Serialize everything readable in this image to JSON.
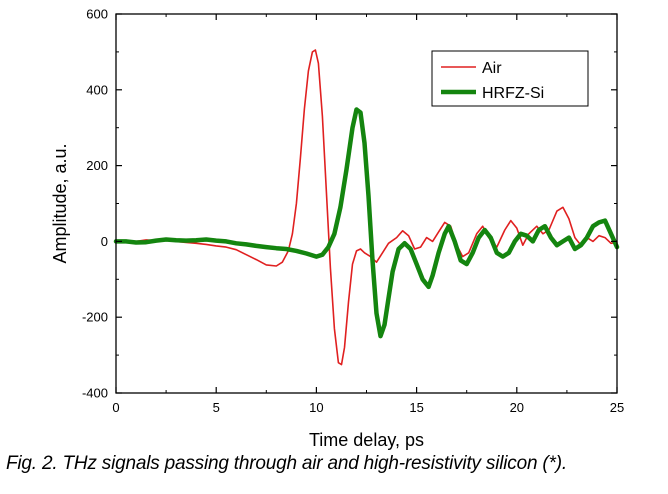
{
  "caption": "Fig.  2. THz signals passing through air and high-resistivity silicon (*).",
  "chart_data": {
    "type": "line",
    "title": "",
    "xlabel": "Time delay, ps",
    "ylabel": "Amplitude, a.u.",
    "xlim": [
      0,
      25
    ],
    "ylim": [
      -400,
      600
    ],
    "x_ticks": [
      0,
      5,
      10,
      15,
      20,
      25
    ],
    "y_ticks": [
      -400,
      -200,
      0,
      200,
      400,
      600
    ],
    "legend_position": "top-right",
    "grid": false,
    "series": [
      {
        "name": "Air",
        "color": "#e02020",
        "points": [
          [
            0,
            0
          ],
          [
            0.5,
            3
          ],
          [
            1,
            0
          ],
          [
            1.5,
            4
          ],
          [
            2,
            2
          ],
          [
            2.5,
            5
          ],
          [
            3,
            0
          ],
          [
            3.5,
            -3
          ],
          [
            4,
            -5
          ],
          [
            4.5,
            -8
          ],
          [
            5,
            -12
          ],
          [
            5.5,
            -15
          ],
          [
            6,
            -22
          ],
          [
            6.5,
            -35
          ],
          [
            7,
            -48
          ],
          [
            7.5,
            -62
          ],
          [
            8,
            -65
          ],
          [
            8.3,
            -55
          ],
          [
            8.6,
            -25
          ],
          [
            8.8,
            20
          ],
          [
            9,
            100
          ],
          [
            9.2,
            220
          ],
          [
            9.4,
            350
          ],
          [
            9.6,
            450
          ],
          [
            9.8,
            500
          ],
          [
            9.95,
            505
          ],
          [
            10.1,
            470
          ],
          [
            10.3,
            330
          ],
          [
            10.5,
            130
          ],
          [
            10.7,
            -70
          ],
          [
            10.9,
            -230
          ],
          [
            11.1,
            -320
          ],
          [
            11.25,
            -325
          ],
          [
            11.4,
            -280
          ],
          [
            11.6,
            -160
          ],
          [
            11.8,
            -60
          ],
          [
            12.0,
            -25
          ],
          [
            12.2,
            -20
          ],
          [
            12.4,
            -30
          ],
          [
            12.7,
            -40
          ],
          [
            13.0,
            -55
          ],
          [
            13.3,
            -30
          ],
          [
            13.6,
            -5
          ],
          [
            14.0,
            10
          ],
          [
            14.3,
            28
          ],
          [
            14.6,
            15
          ],
          [
            14.9,
            -20
          ],
          [
            15.2,
            -15
          ],
          [
            15.5,
            10
          ],
          [
            15.8,
            0
          ],
          [
            16.1,
            25
          ],
          [
            16.4,
            50
          ],
          [
            16.7,
            40
          ],
          [
            17.0,
            -10
          ],
          [
            17.3,
            -40
          ],
          [
            17.6,
            -30
          ],
          [
            18.0,
            20
          ],
          [
            18.3,
            40
          ],
          [
            18.6,
            10
          ],
          [
            19.0,
            -15
          ],
          [
            19.4,
            30
          ],
          [
            19.7,
            55
          ],
          [
            20.0,
            35
          ],
          [
            20.3,
            -10
          ],
          [
            20.6,
            20
          ],
          [
            21.0,
            40
          ],
          [
            21.3,
            20
          ],
          [
            21.6,
            30
          ],
          [
            22.0,
            80
          ],
          [
            22.3,
            90
          ],
          [
            22.6,
            60
          ],
          [
            22.9,
            10
          ],
          [
            23.2,
            -10
          ],
          [
            23.5,
            10
          ],
          [
            23.8,
            0
          ],
          [
            24.1,
            15
          ],
          [
            24.4,
            10
          ],
          [
            24.7,
            -5
          ],
          [
            25,
            -2
          ]
        ]
      },
      {
        "name": "HRFZ-Si",
        "color": "#14850f",
        "points": [
          [
            0,
            0
          ],
          [
            0.5,
            0
          ],
          [
            1,
            -3
          ],
          [
            1.5,
            -2
          ],
          [
            2,
            2
          ],
          [
            2.5,
            5
          ],
          [
            3,
            3
          ],
          [
            3.5,
            2
          ],
          [
            4,
            3
          ],
          [
            4.5,
            5
          ],
          [
            5,
            2
          ],
          [
            5.5,
            0
          ],
          [
            6,
            -5
          ],
          [
            6.5,
            -8
          ],
          [
            7,
            -12
          ],
          [
            7.5,
            -15
          ],
          [
            8,
            -18
          ],
          [
            8.5,
            -20
          ],
          [
            9,
            -25
          ],
          [
            9.5,
            -32
          ],
          [
            10,
            -40
          ],
          [
            10.3,
            -35
          ],
          [
            10.6,
            -15
          ],
          [
            10.9,
            20
          ],
          [
            11.2,
            90
          ],
          [
            11.5,
            190
          ],
          [
            11.8,
            300
          ],
          [
            12.0,
            348
          ],
          [
            12.2,
            340
          ],
          [
            12.4,
            260
          ],
          [
            12.6,
            120
          ],
          [
            12.8,
            -50
          ],
          [
            13.0,
            -190
          ],
          [
            13.2,
            -250
          ],
          [
            13.4,
            -220
          ],
          [
            13.6,
            -150
          ],
          [
            13.8,
            -80
          ],
          [
            14.1,
            -20
          ],
          [
            14.4,
            -5
          ],
          [
            14.7,
            -20
          ],
          [
            15.0,
            -60
          ],
          [
            15.3,
            -100
          ],
          [
            15.6,
            -120
          ],
          [
            15.8,
            -90
          ],
          [
            16.1,
            -30
          ],
          [
            16.4,
            20
          ],
          [
            16.6,
            40
          ],
          [
            16.9,
            0
          ],
          [
            17.2,
            -50
          ],
          [
            17.5,
            -60
          ],
          [
            17.8,
            -30
          ],
          [
            18.1,
            10
          ],
          [
            18.4,
            30
          ],
          [
            18.7,
            10
          ],
          [
            19.0,
            -30
          ],
          [
            19.3,
            -40
          ],
          [
            19.6,
            -30
          ],
          [
            19.9,
            0
          ],
          [
            20.2,
            20
          ],
          [
            20.5,
            15
          ],
          [
            20.8,
            0
          ],
          [
            21.1,
            30
          ],
          [
            21.4,
            40
          ],
          [
            21.7,
            10
          ],
          [
            22.0,
            -10
          ],
          [
            22.3,
            0
          ],
          [
            22.6,
            10
          ],
          [
            22.9,
            -20
          ],
          [
            23.2,
            -10
          ],
          [
            23.5,
            10
          ],
          [
            23.8,
            40
          ],
          [
            24.1,
            50
          ],
          [
            24.4,
            55
          ],
          [
            24.7,
            20
          ],
          [
            25,
            -15
          ]
        ]
      }
    ]
  }
}
